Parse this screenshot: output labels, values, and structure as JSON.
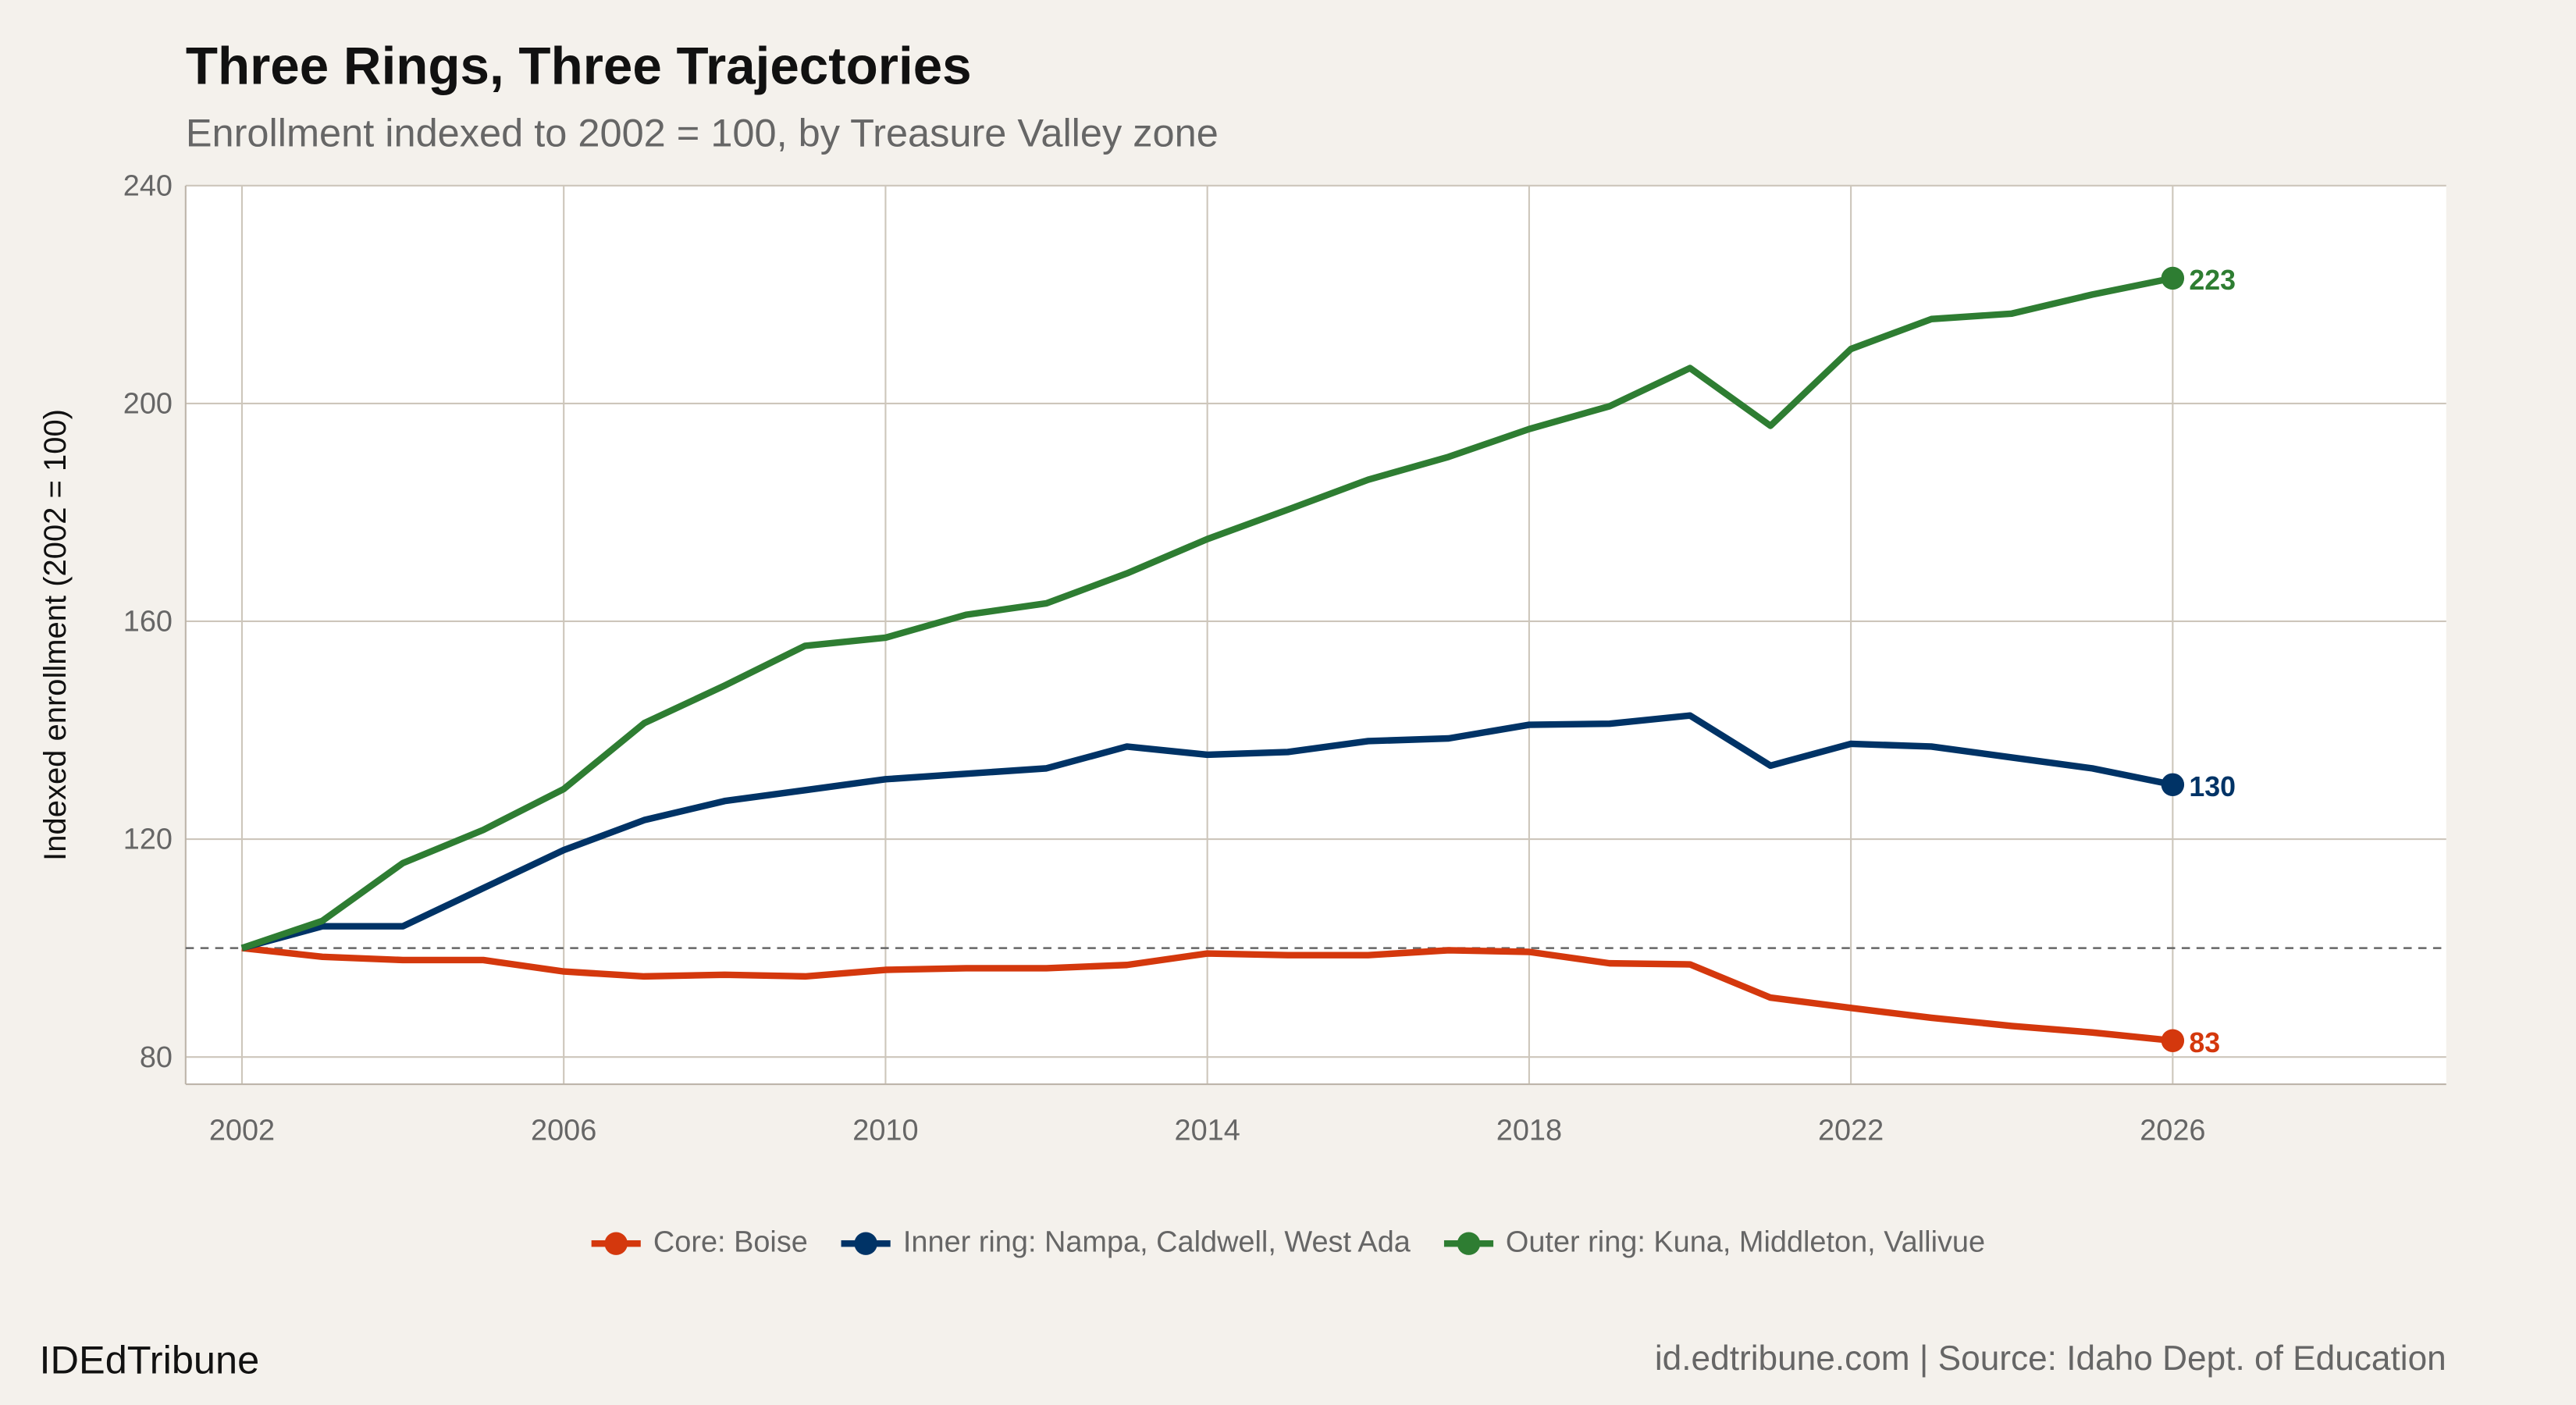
{
  "title": "Three Rings, Three Trajectories",
  "subtitle": "Enrollment indexed to 2002 = 100, by Treasure Valley zone",
  "footer": {
    "brand": "IDEdTribune",
    "source": "id.edtribune.com | Source: Idaho Dept. of Education"
  },
  "chart_data": {
    "type": "line",
    "title": "Three Rings, Three Trajectories",
    "subtitle": "Enrollment indexed to 2002 = 100, by Treasure Valley zone",
    "xlabel": "",
    "ylabel": "Indexed enrollment (2002 = 100)",
    "xlim": [
      2001.3,
      2029.4
    ],
    "ylim": [
      75,
      240
    ],
    "x_ticks": [
      2002,
      2006,
      2010,
      2014,
      2018,
      2022,
      2026
    ],
    "y_ticks": [
      80,
      120,
      160,
      200,
      240
    ],
    "grid": true,
    "reference_line": {
      "y": 100,
      "style": "dashed",
      "color": "#666666"
    },
    "legend_position": "bottom",
    "x": [
      2002,
      2003,
      2004,
      2005,
      2006,
      2007,
      2008,
      2009,
      2010,
      2011,
      2012,
      2013,
      2014,
      2015,
      2016,
      2017,
      2018,
      2019,
      2020,
      2021,
      2022,
      2023,
      2024,
      2025,
      2026
    ],
    "series": [
      {
        "name": "Core: Boise",
        "color": "#d4380d",
        "end_label": "83",
        "values": [
          100,
          98.4,
          97.8,
          97.8,
          95.7,
          94.8,
          95.1,
          94.8,
          96,
          96.3,
          96.3,
          96.9,
          99,
          98.7,
          98.7,
          99.6,
          99.3,
          97.2,
          97,
          90.9,
          89,
          87.2,
          85.7,
          84.5,
          83
        ]
      },
      {
        "name": "Inner ring: Nampa, Caldwell, West Ada",
        "color": "#003366",
        "end_label": "130",
        "values": [
          100,
          104,
          104,
          111,
          118,
          123.5,
          127,
          129,
          131,
          132,
          133,
          137,
          135.5,
          136,
          138,
          138.5,
          141,
          141.2,
          142.7,
          133.5,
          137.5,
          137,
          135,
          133,
          130
        ]
      },
      {
        "name": "Outer ring: Kuna, Middleton, Vallivue",
        "color": "#2e7d32",
        "end_label": "223",
        "values": [
          100,
          105,
          115.6,
          121.7,
          129.2,
          141.3,
          148.2,
          155.5,
          157,
          161.2,
          163.3,
          168.8,
          175.1,
          180.5,
          186,
          190.2,
          195.3,
          199.5,
          206.5,
          195.9,
          210,
          215.5,
          216.5,
          220,
          223
        ]
      }
    ]
  }
}
